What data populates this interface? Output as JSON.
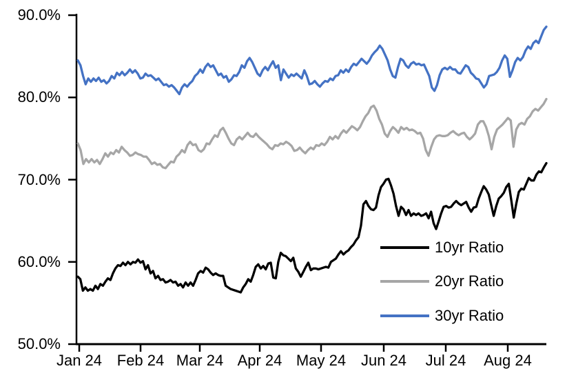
{
  "chart_data": {
    "type": "line",
    "title": "",
    "grid": false,
    "legend_position": "inside-lower-right",
    "y_axis": {
      "min": 50.0,
      "max": 90.0,
      "unit": "%",
      "tick_labels": [
        "90.0%",
        "80.0%",
        "70.0%",
        "60.0%",
        "50.0%"
      ]
    },
    "x_axis": {
      "tick_labels": [
        "Jan 24",
        "Feb 24",
        "Mar 24",
        "Apr 24",
        "May 24",
        "Jun 24",
        "Jul 24",
        "Aug 24"
      ],
      "range_note": "data extends about three weeks past the Aug 24 tick"
    },
    "axis_color": "#000000",
    "series": [
      {
        "name": "10yr Ratio",
        "color": "#000000",
        "values": [
          58.2,
          57.9,
          56.5,
          56.9,
          56.5,
          56.7,
          56.5,
          57.1,
          56.7,
          57.3,
          57.1,
          57.6,
          58.0,
          57.8,
          58.6,
          59.2,
          59.6,
          59.5,
          59.9,
          59.6,
          60.0,
          59.7,
          60.0,
          59.9,
          60.3,
          59.9,
          60.1,
          59.1,
          59.6,
          58.6,
          58.9,
          58.0,
          58.3,
          57.8,
          57.9,
          57.5,
          57.6,
          57.8,
          57.5,
          57.6,
          57.1,
          57.3,
          56.9,
          57.5,
          57.1,
          57.5,
          57.1,
          57.8,
          58.6,
          58.9,
          58.7,
          59.3,
          59.1,
          58.7,
          58.4,
          58.6,
          58.4,
          58.3,
          58.3,
          57.1,
          56.9,
          56.7,
          56.6,
          56.5,
          56.4,
          56.3,
          56.9,
          57.3,
          57.9,
          57.6,
          58.4,
          59.4,
          59.7,
          59.2,
          59.5,
          59.1,
          59.8,
          59.9,
          58.1,
          58.0,
          60.0,
          61.1,
          60.8,
          60.7,
          60.4,
          60.1,
          60.5,
          59.2,
          58.8,
          58.2,
          58.8,
          59.4,
          59.9,
          59.0,
          59.2,
          59.2,
          59.1,
          59.2,
          59.3,
          59.4,
          59.3,
          60.0,
          60.2,
          60.4,
          60.9,
          61.3,
          60.9,
          61.2,
          61.4,
          61.8,
          62.1,
          62.6,
          63.0,
          64.4,
          67.0,
          67.4,
          66.8,
          66.4,
          66.3,
          66.6,
          68.1,
          69.1,
          69.5,
          70.0,
          70.1,
          69.3,
          68.3,
          66.8,
          65.6,
          66.7,
          66.4,
          65.7,
          66.3,
          65.6,
          65.9,
          65.7,
          65.9,
          65.6,
          65.7,
          65.9,
          65.3,
          66.1,
          64.7,
          64.0,
          64.9,
          65.9,
          66.7,
          66.8,
          66.6,
          66.7,
          67.1,
          67.4,
          67.1,
          66.9,
          67.1,
          67.3,
          66.6,
          66.1,
          66.6,
          66.7,
          67.7,
          68.5,
          69.2,
          68.8,
          68.2,
          66.9,
          65.6,
          66.8,
          67.7,
          68.0,
          68.4,
          69.1,
          69.5,
          67.5,
          65.4,
          67.1,
          68.5,
          68.9,
          68.8,
          69.5,
          70.2,
          69.9,
          69.9,
          70.6,
          71.0,
          70.9,
          71.5,
          72.0
        ]
      },
      {
        "name": "20yr Ratio",
        "color": "#A6A6A6",
        "values": [
          74.4,
          73.6,
          71.9,
          72.5,
          72.1,
          72.5,
          72.1,
          72.4,
          71.9,
          72.5,
          73.2,
          72.8,
          73.3,
          73.1,
          73.6,
          73.3,
          74.0,
          73.6,
          73.3,
          72.9,
          73.0,
          73.3,
          73.1,
          73.0,
          72.8,
          72.8,
          72.4,
          71.9,
          72.1,
          71.8,
          71.9,
          71.5,
          71.4,
          71.8,
          72.2,
          72.1,
          72.8,
          73.1,
          73.6,
          73.3,
          74.2,
          74.6,
          74.2,
          74.3,
          73.6,
          73.4,
          73.7,
          74.4,
          74.3,
          74.9,
          75.4,
          75.2,
          76.0,
          76.3,
          75.7,
          75.0,
          74.4,
          74.2,
          74.9,
          75.2,
          74.9,
          75.3,
          75.7,
          75.3,
          75.2,
          75.6,
          75.2,
          74.9,
          74.6,
          74.3,
          73.9,
          73.7,
          74.2,
          74.1,
          74.4,
          74.3,
          74.6,
          74.4,
          74.1,
          73.5,
          73.6,
          73.9,
          73.5,
          73.2,
          73.6,
          73.9,
          73.7,
          74.2,
          74.1,
          74.4,
          74.2,
          74.6,
          75.2,
          74.9,
          75.3,
          75.0,
          75.6,
          76.0,
          75.7,
          76.1,
          76.5,
          76.3,
          76.0,
          76.4,
          77.1,
          77.7,
          78.1,
          78.8,
          79.0,
          78.4,
          77.4,
          76.7,
          75.6,
          75.2,
          75.9,
          76.4,
          76.1,
          75.7,
          76.4,
          76.1,
          76.3,
          76.0,
          76.1,
          75.9,
          75.6,
          75.7,
          75.0,
          73.6,
          72.9,
          74.0,
          74.9,
          75.3,
          75.4,
          75.3,
          75.3,
          75.4,
          75.7,
          75.9,
          75.6,
          75.4,
          75.6,
          75.7,
          75.2,
          74.9,
          75.2,
          75.6,
          76.7,
          77.1,
          77.1,
          76.4,
          75.3,
          73.7,
          75.2,
          76.1,
          76.4,
          76.7,
          77.1,
          77.5,
          77.2,
          74.0,
          76.1,
          76.7,
          76.9,
          76.7,
          77.4,
          77.7,
          78.3,
          78.6,
          78.4,
          78.8,
          79.2,
          79.8
        ]
      },
      {
        "name": "30yr Ratio",
        "color": "#4472C4",
        "values": [
          84.5,
          83.9,
          82.6,
          81.6,
          82.3,
          81.9,
          82.3,
          82.0,
          82.4,
          81.9,
          82.1,
          81.7,
          82.0,
          82.6,
          82.3,
          83.0,
          82.7,
          83.1,
          82.7,
          83.0,
          83.4,
          83.0,
          83.3,
          82.9,
          82.3,
          82.4,
          82.9,
          82.6,
          82.7,
          82.4,
          82.1,
          82.3,
          81.9,
          81.5,
          81.6,
          81.3,
          81.5,
          81.2,
          80.8,
          80.4,
          81.2,
          81.6,
          81.3,
          81.7,
          82.0,
          82.6,
          82.9,
          83.4,
          83.0,
          83.7,
          84.1,
          83.7,
          83.9,
          83.3,
          82.7,
          82.9,
          82.4,
          82.6,
          81.9,
          82.2,
          82.7,
          82.6,
          83.1,
          83.9,
          83.6,
          84.4,
          84.8,
          84.3,
          83.6,
          82.9,
          82.6,
          83.3,
          83.7,
          83.3,
          83.9,
          84.4,
          83.6,
          83.9,
          82.1,
          83.4,
          82.9,
          82.4,
          82.8,
          82.6,
          82.9,
          82.6,
          82.3,
          83.3,
          82.6,
          81.6,
          81.7,
          82.0,
          81.6,
          81.3,
          81.7,
          82.0,
          81.9,
          82.3,
          82.1,
          82.6,
          82.7,
          83.3,
          83.0,
          83.4,
          83.1,
          83.7,
          84.1,
          83.9,
          84.3,
          84.7,
          84.4,
          84.1,
          84.5,
          85.1,
          85.5,
          85.8,
          86.3,
          85.9,
          85.2,
          84.5,
          83.4,
          82.6,
          82.4,
          83.7,
          84.7,
          84.5,
          83.9,
          83.6,
          84.1,
          84.3,
          84.0,
          84.1,
          83.9,
          84.0,
          83.3,
          82.6,
          81.2,
          80.8,
          81.5,
          82.7,
          83.4,
          83.6,
          83.4,
          83.7,
          83.4,
          83.4,
          83.0,
          82.9,
          83.4,
          83.9,
          83.7,
          83.0,
          82.7,
          82.3,
          82.2,
          81.7,
          81.2,
          81.6,
          82.6,
          82.7,
          82.8,
          83.1,
          83.6,
          84.5,
          85.1,
          84.7,
          82.5,
          83.3,
          84.3,
          84.8,
          84.5,
          84.9,
          85.7,
          86.2,
          85.9,
          86.6,
          86.9,
          86.6,
          87.4,
          88.2,
          88.6
        ]
      }
    ]
  }
}
